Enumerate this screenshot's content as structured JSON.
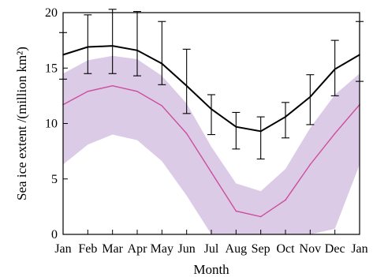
{
  "chart_data": {
    "type": "line",
    "title": "",
    "xlabel": "Month",
    "ylabel": "Sea ice extent /(million km²)",
    "categories": [
      "Jan",
      "Feb",
      "Mar",
      "Apr",
      "May",
      "Jun",
      "Jul",
      "Aug",
      "Sep",
      "Oct",
      "Nov",
      "Dec",
      "Jan"
    ],
    "ylim": [
      0,
      20
    ],
    "yticks": [
      "0",
      "5",
      "10",
      "15",
      "20"
    ],
    "grid": false,
    "legend": "none",
    "series": [
      {
        "line_color": "#000000",
        "values": [
          16.2,
          16.9,
          17.0,
          16.6,
          15.4,
          13.4,
          11.3,
          9.7,
          9.3,
          10.6,
          12.4,
          14.9,
          16.2
        ],
        "error_low": [
          14.0,
          14.5,
          14.5,
          14.3,
          13.5,
          10.9,
          9.0,
          7.7,
          6.8,
          8.7,
          9.9,
          12.5,
          13.8
        ],
        "error_high": [
          18.2,
          19.8,
          20.3,
          20.1,
          19.2,
          16.7,
          12.6,
          11.0,
          10.6,
          11.9,
          14.4,
          17.5,
          19.2
        ]
      },
      {
        "line_color": "#cc4d9d",
        "band_color": "#dccbe6",
        "values": [
          11.7,
          12.9,
          13.4,
          12.9,
          11.6,
          9.1,
          5.6,
          2.1,
          1.6,
          3.1,
          6.3,
          9.1,
          11.7
        ],
        "band_low": [
          6.3,
          8.1,
          9.0,
          8.5,
          6.6,
          3.5,
          0.0,
          0.0,
          0.0,
          0.0,
          0.0,
          0.5,
          6.3
        ],
        "band_high": [
          14.5,
          15.7,
          16.1,
          15.8,
          14.3,
          11.8,
          7.9,
          4.6,
          3.9,
          5.9,
          9.6,
          12.6,
          14.5
        ]
      }
    ]
  }
}
